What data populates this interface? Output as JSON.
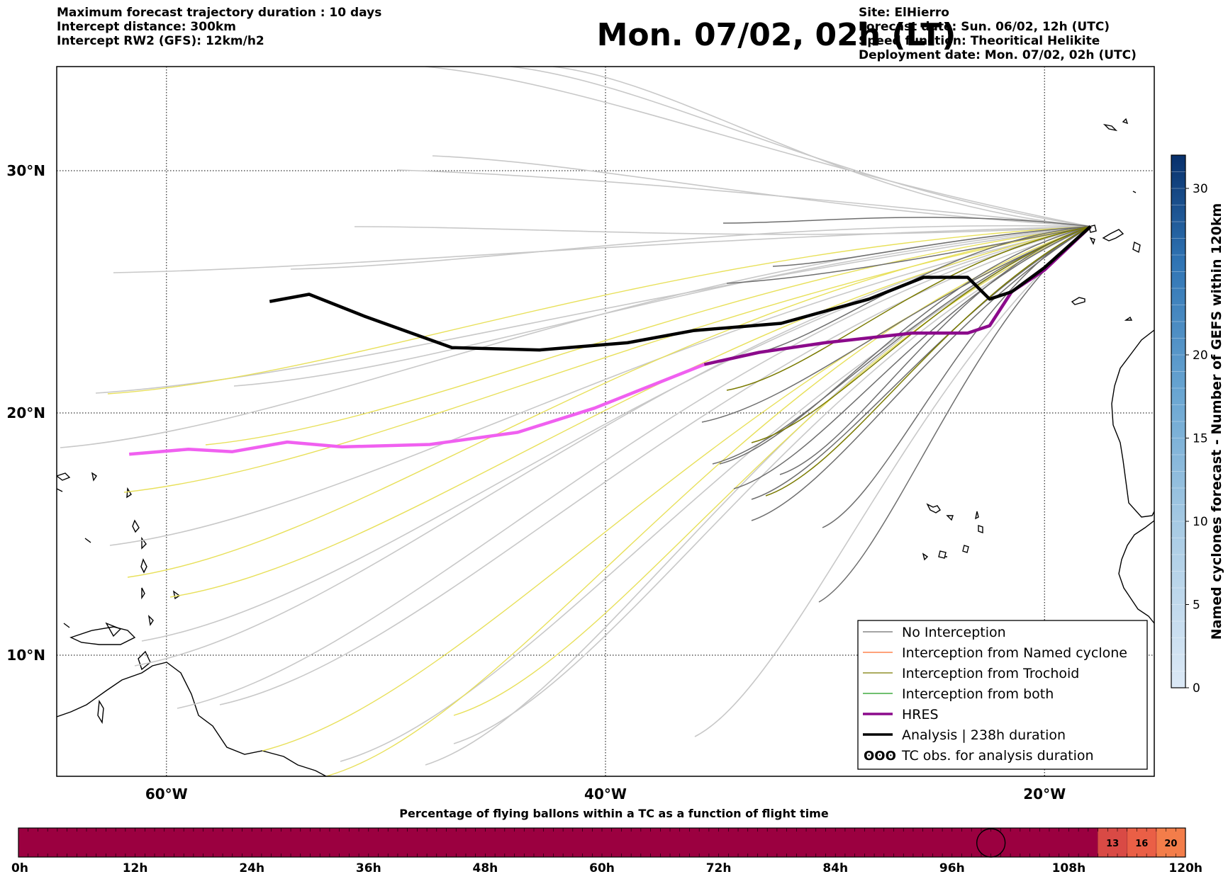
{
  "header": {
    "left_lines": [
      "Maximum forecast trajectory duration : 10 days",
      "Intercept distance: 300km",
      "Intercept RW2 (GFS):  12km/h2"
    ],
    "title": "Mon. 07/02, 02h (LT)",
    "right_lines": [
      "Site: ElHierro",
      "Forecast date: Sun. 06/02, 12h (UTC)",
      "Speed function: Theoritical Helikite",
      "Deployment date: Mon. 07/02, 02h (UTC)"
    ]
  },
  "map": {
    "lon_range": [
      -65,
      -15
    ],
    "lat_range": [
      5,
      34.3
    ],
    "lon_ticks": [
      {
        "value": -60,
        "label": "60°W"
      },
      {
        "value": -40,
        "label": "40°W"
      },
      {
        "value": -20,
        "label": "20°W"
      }
    ],
    "lat_ticks": [
      {
        "value": 30,
        "label": "30°N"
      },
      {
        "value": 20,
        "label": "20°N"
      },
      {
        "value": 10,
        "label": "10°N"
      }
    ],
    "gridlines": "dotted",
    "site": {
      "name": "ElHierro",
      "lon": -17.9,
      "lat": 27.7
    },
    "colors": {
      "no_interception": "#6e6e6e",
      "no_interception_light": "#c8c8c8",
      "named_cyclone": "#ff6a2a",
      "trochoid": "#7a7a00",
      "trochoid_light": "#e8e05a",
      "both": "#1a9a1a",
      "hres": "#8b0a8b",
      "hres_light": "#f060f0",
      "analysis": "#000000"
    },
    "hres_track": [
      [
        -61.7,
        18.3
      ],
      [
        -59,
        18.5
      ],
      [
        -57,
        18.4
      ],
      [
        -54.5,
        18.8
      ],
      [
        -52,
        18.6
      ],
      [
        -48,
        18.7
      ],
      [
        -44,
        19.2
      ],
      [
        -40.5,
        20.2
      ],
      [
        -38,
        21.1
      ],
      [
        -35.5,
        22.0
      ],
      [
        -33,
        22.5
      ],
      [
        -30,
        22.9
      ],
      [
        -26,
        23.3
      ],
      [
        -23.5,
        23.3
      ],
      [
        -22.5,
        23.6
      ],
      [
        -21.5,
        25.0
      ],
      [
        -20,
        25.9
      ],
      [
        -17.9,
        27.7
      ]
    ],
    "analysis_track": [
      [
        -55.3,
        24.6
      ],
      [
        -53.5,
        24.9
      ],
      [
        -51,
        24.0
      ],
      [
        -47,
        22.7
      ],
      [
        -43,
        22.6
      ],
      [
        -39,
        22.9
      ],
      [
        -36,
        23.4
      ],
      [
        -32,
        23.7
      ],
      [
        -28,
        24.7
      ],
      [
        -25.5,
        25.6
      ],
      [
        -23.5,
        25.6
      ],
      [
        -22.5,
        24.7
      ],
      [
        -21.5,
        25.0
      ],
      [
        -20,
        26.0
      ],
      [
        -17.9,
        27.7
      ]
    ],
    "legend": [
      {
        "label": "No Interception",
        "style": "no_interception",
        "width": 1.2
      },
      {
        "label": "Interception from Named cyclone",
        "style": "named_cyclone",
        "width": 1.2
      },
      {
        "label": "Interception from Trochoid",
        "style": "trochoid",
        "width": 1.2
      },
      {
        "label": "Interception from both",
        "style": "both",
        "width": 1.2
      },
      {
        "label": "HRES",
        "style": "hres",
        "width": 3.5
      },
      {
        "label": "Analysis | 238h duration",
        "style": "analysis",
        "width": 3.5
      },
      {
        "label": "TC obs. for analysis duration",
        "style": "tc_symbol",
        "width": 0
      }
    ]
  },
  "colorbar": {
    "label": "Named cyclones forecast - Number of GEFS within 120km",
    "min": 0,
    "max": 32,
    "ticks": [
      0,
      5,
      10,
      15,
      20,
      30
    ],
    "color_low": "#dce9f6",
    "color_high": "#08306b"
  },
  "timeline": {
    "title": "Percentage of flying ballons within a TC as a function of flight time",
    "base_color": "#9b0040",
    "hours_max": 120,
    "ticks": [
      "0h",
      "12h",
      "24h",
      "36h",
      "48h",
      "60h",
      "72h",
      "84h",
      "96h",
      "108h",
      "120h"
    ],
    "marker_hour": 100,
    "segments": [
      {
        "from_hour": 111,
        "to_hour": 114,
        "value": "13",
        "color": "#d94a45"
      },
      {
        "from_hour": 114,
        "to_hour": 117,
        "value": "16",
        "color": "#ea5f46"
      },
      {
        "from_hour": 117,
        "to_hour": 120,
        "value": "20",
        "color": "#f37d4a"
      }
    ]
  }
}
